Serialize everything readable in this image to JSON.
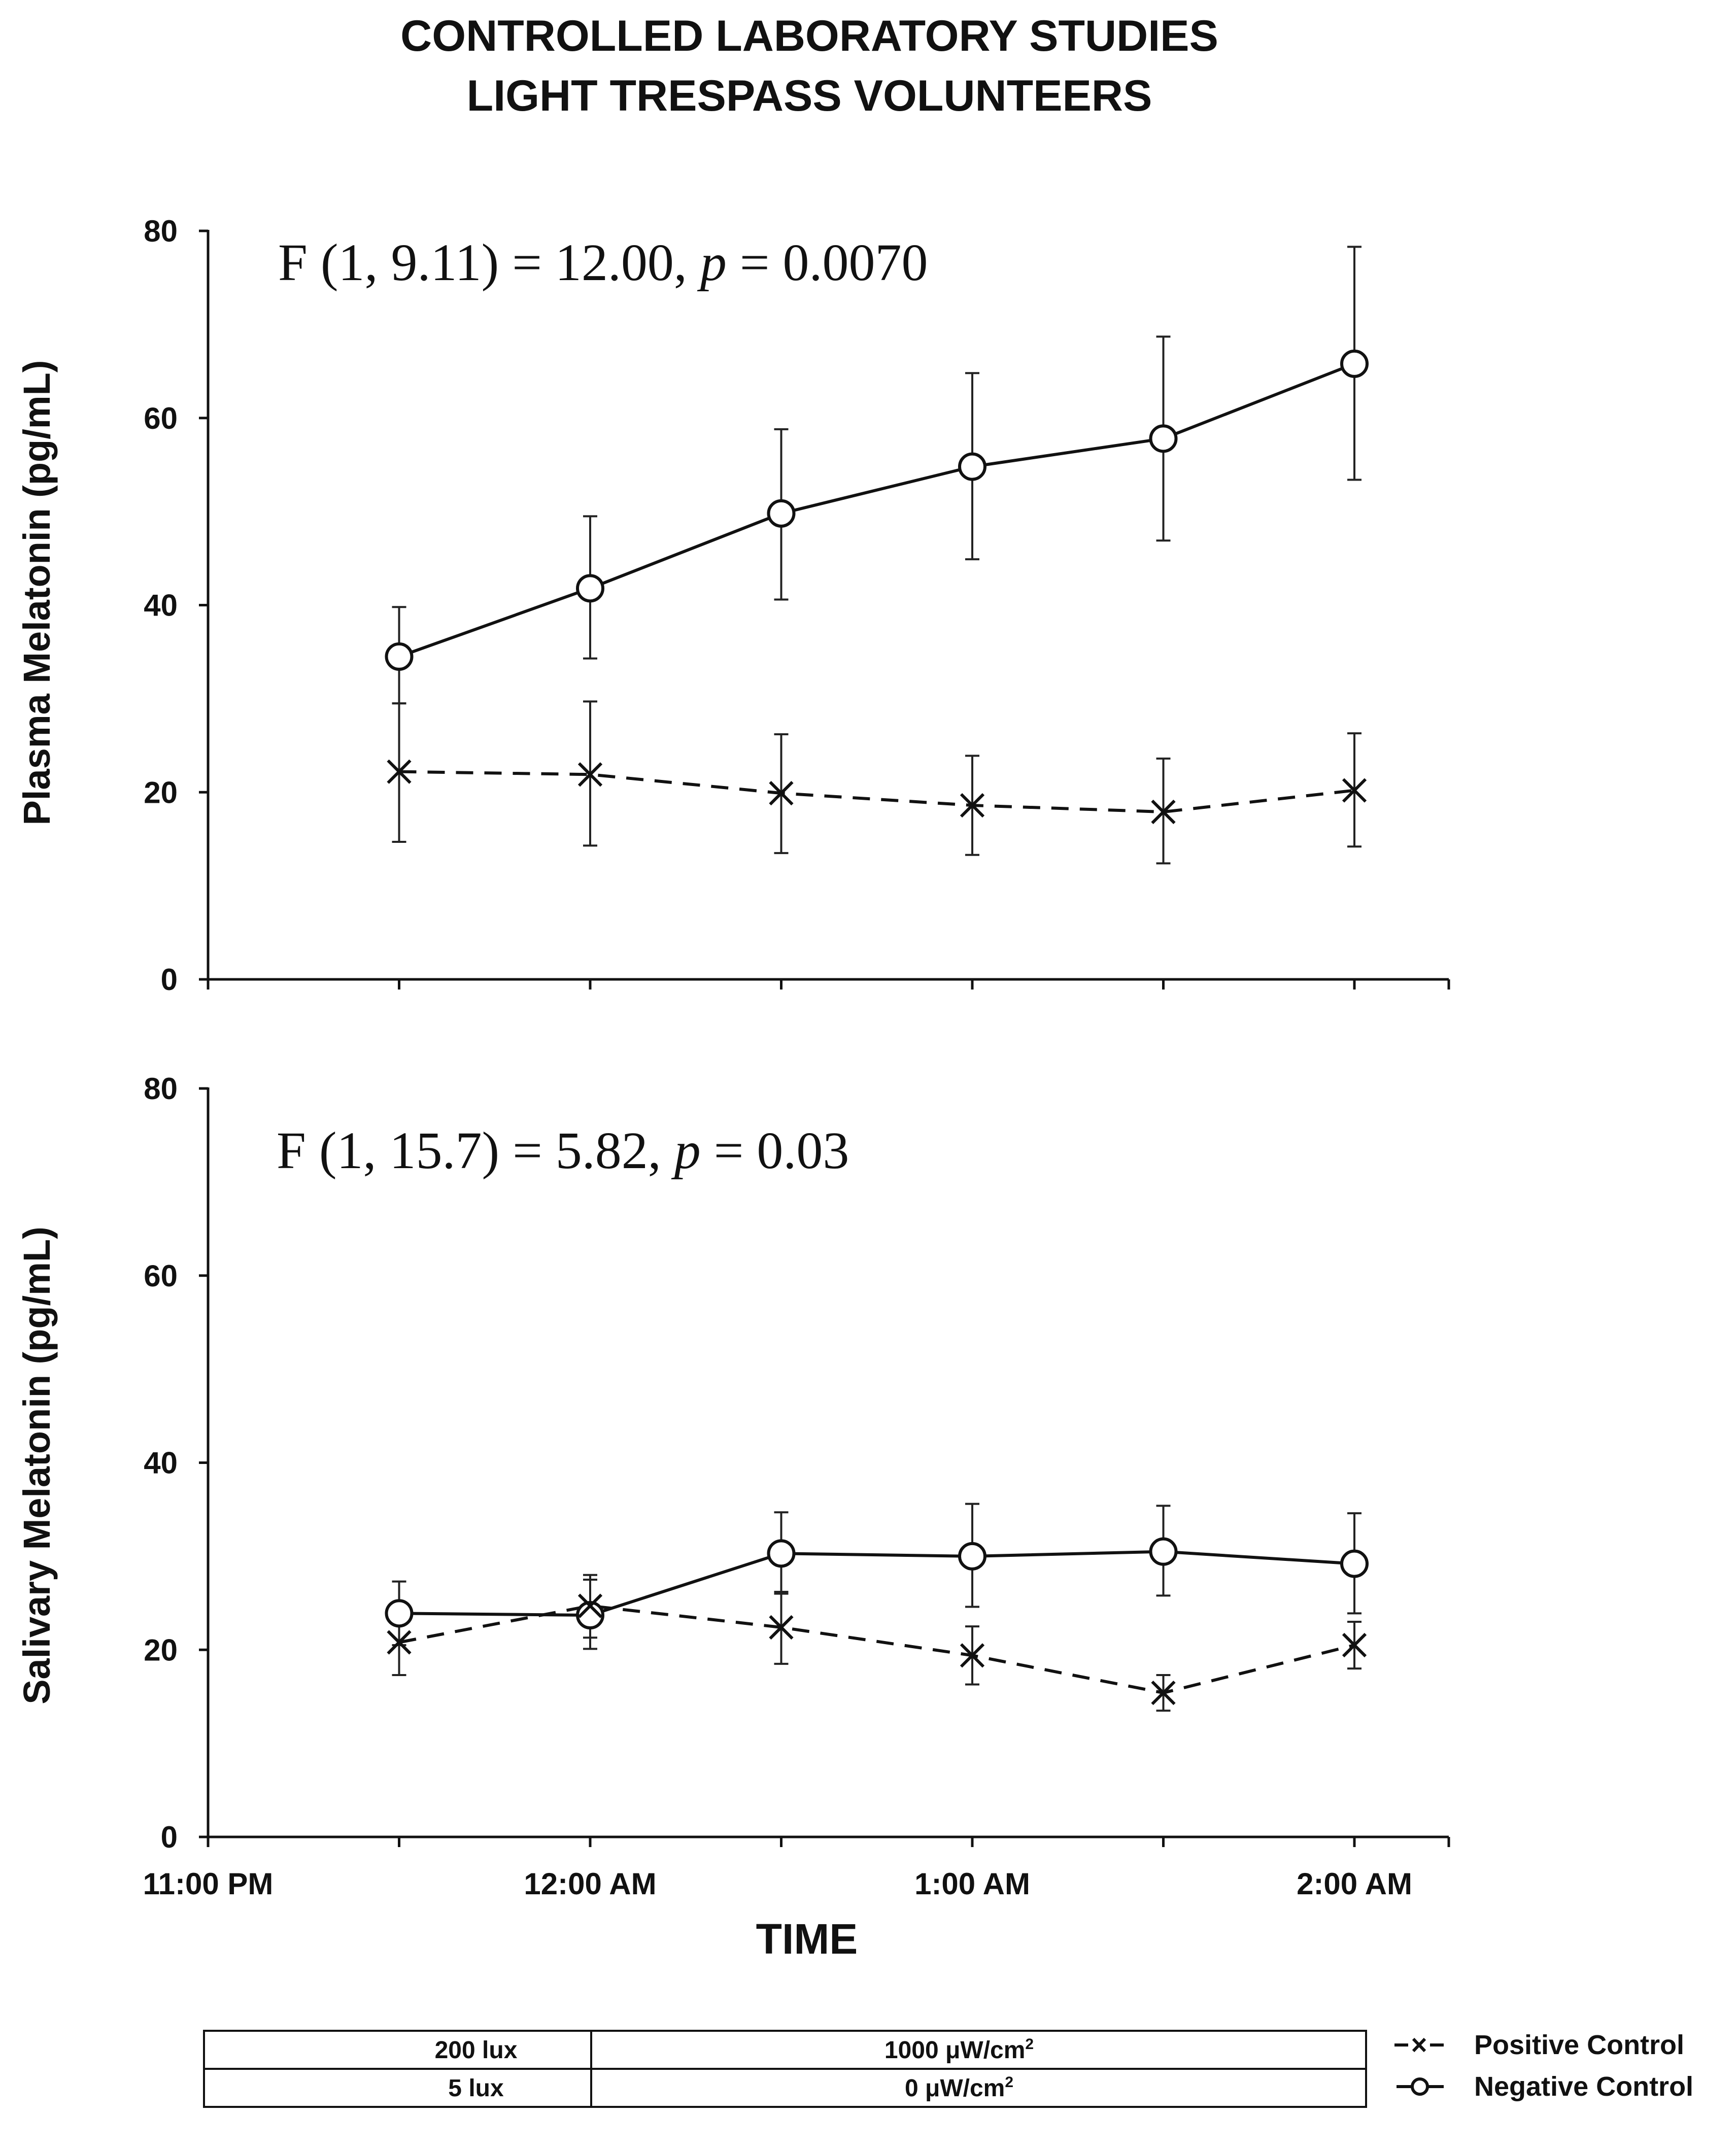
{
  "figure": {
    "title_line1": "CONTROLLED LABORATORY STUDIES",
    "title_line2": "LIGHT TRESPASS VOLUNTEERS",
    "xlabel": "TIME",
    "xticks": [
      "11:00 PM",
      "12:00 AM",
      "1:00 AM",
      "2:00 AM"
    ]
  },
  "chart_data": [
    {
      "type": "line",
      "title": "",
      "ylabel": "Plasma Melatonin (pg/mL)",
      "xlabel": "TIME",
      "ylim": [
        0,
        80
      ],
      "yticks": [
        "0",
        "20",
        "40",
        "60",
        "80"
      ],
      "x": [
        0.5,
        1.0,
        1.5,
        2.0,
        2.5,
        3.0
      ],
      "stat": {
        "prefix": "F (1, 9.11) = 12.00, ",
        "p": "p",
        "suffix": " = 0.0070"
      },
      "series": [
        {
          "name": "Negative Control",
          "marker": "circle",
          "style": "solid",
          "values": [
            34.5,
            41.8,
            49.8,
            54.8,
            57.8,
            65.8
          ],
          "err_hi": [
            39.8,
            49.5,
            58.8,
            64.8,
            68.7,
            78.3
          ],
          "err_lo": [
            29.5,
            34.3,
            40.6,
            44.9,
            46.9,
            53.4
          ]
        },
        {
          "name": "Positive Control",
          "marker": "x",
          "style": "dashed",
          "values": [
            22.2,
            21.9,
            19.9,
            18.6,
            17.9,
            20.2
          ],
          "err_hi": [
            29.5,
            29.7,
            26.2,
            23.9,
            23.6,
            26.3
          ],
          "err_lo": [
            14.7,
            14.3,
            13.5,
            13.3,
            12.4,
            14.2
          ]
        }
      ]
    },
    {
      "type": "line",
      "title": "",
      "ylabel": "Salivary Melatonin (pg/mL)",
      "xlabel": "TIME",
      "ylim": [
        0,
        80
      ],
      "yticks": [
        "0",
        "20",
        "40",
        "60",
        "80"
      ],
      "x": [
        0.5,
        1.0,
        1.5,
        2.0,
        2.5,
        3.0
      ],
      "stat": {
        "prefix": "F (1, 15.7) = 5.82, ",
        "p": "p",
        "suffix": " = 0.03"
      },
      "series": [
        {
          "name": "Negative Control",
          "marker": "circle",
          "style": "solid",
          "values": [
            23.9,
            23.7,
            30.3,
            30.0,
            30.5,
            29.2
          ],
          "err_hi": [
            27.3,
            27.5,
            34.7,
            35.6,
            35.4,
            34.6
          ],
          "err_lo": [
            20.5,
            20.1,
            26.0,
            24.6,
            25.8,
            23.9
          ]
        },
        {
          "name": "Positive Control",
          "marker": "x",
          "style": "dashed",
          "values": [
            20.8,
            24.7,
            22.4,
            19.4,
            15.4,
            20.5
          ],
          "err_hi": [
            24.2,
            28.0,
            26.2,
            22.5,
            17.3,
            23.0
          ],
          "err_lo": [
            17.3,
            21.3,
            18.5,
            16.3,
            13.5,
            18.0
          ]
        }
      ]
    }
  ],
  "conditions_table": {
    "rows": [
      {
        "lux": "200 lux",
        "irradiance_value": "1000 ",
        "irradiance_unit": "μW/cm",
        "irradiance_exp": "2"
      },
      {
        "lux": "5 lux",
        "irradiance_value": "0 ",
        "irradiance_unit": "μW/cm",
        "irradiance_exp": "2"
      }
    ]
  },
  "legend": {
    "items": [
      {
        "symbol": "- × -",
        "label": "Positive Control"
      },
      {
        "symbol": "—○—",
        "label": "Negative Control"
      }
    ]
  }
}
